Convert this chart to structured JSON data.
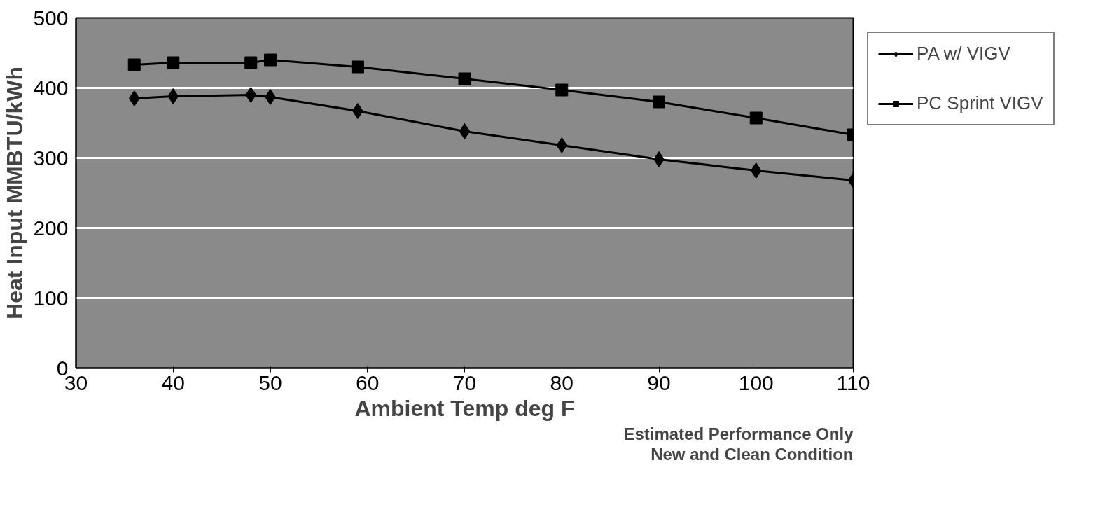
{
  "chart_data": {
    "type": "line",
    "xlabel": "Ambient Temp deg F",
    "ylabel": "Heat Input MMBTU/kWh",
    "xlim": [
      30,
      110
    ],
    "xticks": [
      30,
      40,
      50,
      60,
      70,
      80,
      90,
      100,
      110
    ],
    "ylim": [
      0,
      500
    ],
    "yticks": [
      0,
      100,
      200,
      300,
      400,
      500
    ],
    "grid": "y",
    "legend": "right",
    "x": [
      36,
      40,
      48,
      50,
      59,
      70,
      80,
      90,
      100,
      110
    ],
    "series": [
      {
        "name": "PA w/ VIGV",
        "color": "#000000",
        "marker": "diamond",
        "values": [
          385,
          388,
          390,
          387,
          367,
          338,
          318,
          298,
          282,
          268
        ]
      },
      {
        "name": "PC Sprint VIGV",
        "color": "#000000",
        "marker": "square",
        "values": [
          433,
          436,
          436,
          440,
          430,
          413,
          397,
          380,
          357,
          333
        ]
      }
    ],
    "annotations": [
      "Estimated Performance Only",
      "New and Clean Condition"
    ]
  }
}
